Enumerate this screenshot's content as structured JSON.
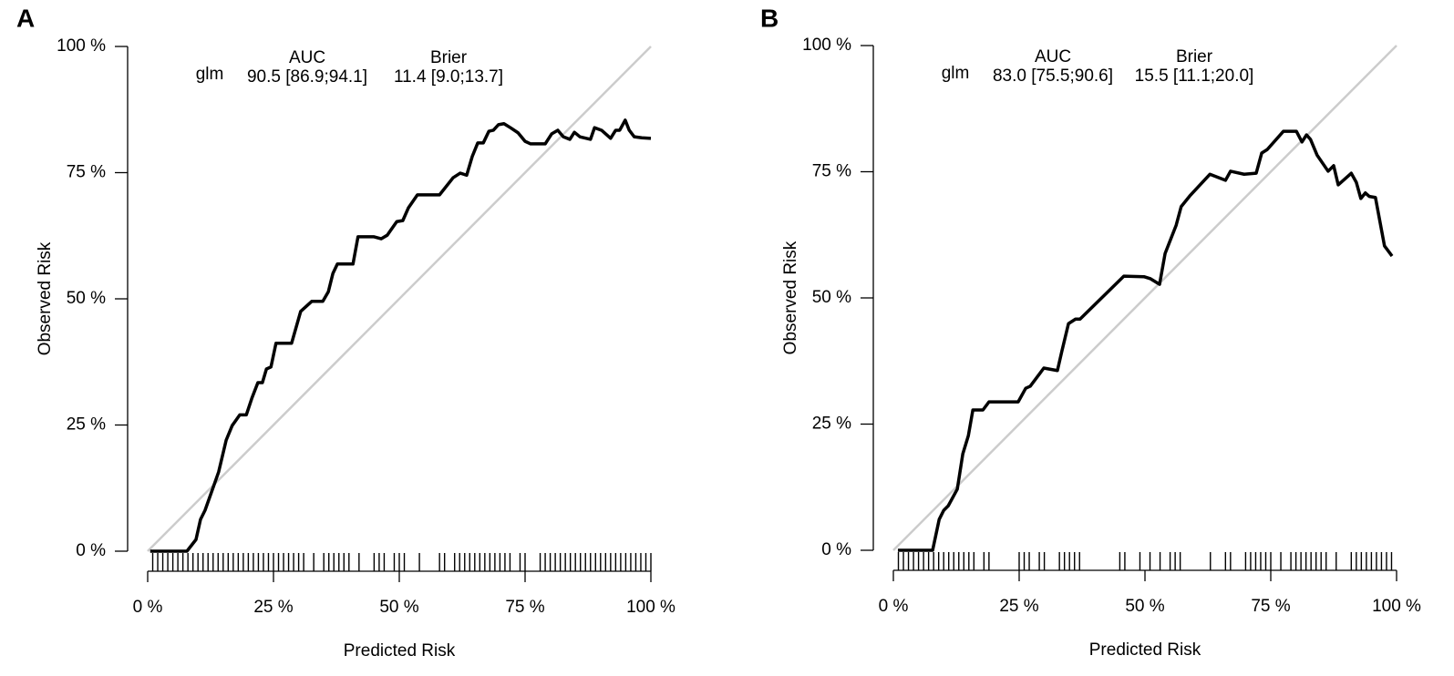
{
  "chart_data": [
    {
      "type": "line",
      "panel": "A",
      "x_label": "Predicted Risk",
      "y_label": "Observed Risk",
      "annotations": {
        "auc_header": "AUC",
        "brier_header": "Brier",
        "model": "glm",
        "auc": "90.5 [86.9;94.1]",
        "brier": "11.4 [9.0;13.7]"
      },
      "xlim": [
        0,
        100
      ],
      "ylim": [
        0,
        100
      ],
      "xticks": [
        {
          "value": 0,
          "label": "0 %"
        },
        {
          "value": 25,
          "label": "25 %"
        },
        {
          "value": 50,
          "label": "50 %"
        },
        {
          "value": 75,
          "label": "75 %"
        },
        {
          "value": 100,
          "label": "100 %"
        }
      ],
      "yticks": [
        {
          "value": 0,
          "label": "0 %"
        },
        {
          "value": 25,
          "label": "25 %"
        },
        {
          "value": 50,
          "label": "50 %"
        },
        {
          "value": 75,
          "label": "75 %"
        },
        {
          "value": 100,
          "label": "100 %"
        }
      ],
      "reference_color": "#cccccc",
      "x": [
        0.5,
        7.8,
        9.6,
        10.5,
        11.4,
        14.1,
        15.6,
        16.8,
        18.3,
        19.6,
        20.7,
        21.9,
        22.8,
        23.6,
        24.5,
        25.5,
        28.6,
        30.4,
        32.6,
        34.8,
        35.9,
        36.8,
        37.7,
        40.8,
        41.8,
        44.9,
        46.4,
        47.6,
        49.5,
        50.7,
        51.8,
        53.6,
        58,
        60.7,
        62.1,
        63.4,
        64.5,
        65.6,
        66.7,
        67.8,
        68.7,
        69.7,
        70.8,
        72.1,
        73.6,
        75,
        76.1,
        79,
        80.3,
        81.5,
        82.6,
        83.9,
        84.8,
        85.9,
        88,
        88.8,
        90.2,
        92,
        93,
        93.8,
        94.9,
        95.7,
        96.7,
        98.2,
        100
      ],
      "series": [
        {
          "color": "#000000",
          "values": [
            0,
            0,
            2.3,
            6.3,
            8.1,
            15.7,
            22,
            24.9,
            27,
            27,
            30.3,
            33.4,
            33.4,
            36.1,
            36.5,
            41.2,
            41.2,
            47.5,
            49.5,
            49.5,
            51.4,
            55,
            56.9,
            56.9,
            62.3,
            62.3,
            61.9,
            62.6,
            65.3,
            65.5,
            68,
            70.6,
            70.6,
            74,
            74.9,
            74.5,
            78.2,
            80.9,
            80.9,
            83.2,
            83.4,
            84.5,
            84.7,
            83.9,
            82.9,
            81.2,
            80.7,
            80.7,
            82.7,
            83.4,
            82.1,
            81.6,
            83,
            82.1,
            81.6,
            83.9,
            83.4,
            81.8,
            83.4,
            83.4,
            85.4,
            83.4,
            82.1,
            81.9,
            81.8
          ]
        }
      ],
      "rug": [
        1,
        2,
        3,
        4,
        5,
        6,
        7,
        8,
        9,
        10,
        11,
        12,
        13,
        14,
        15,
        16,
        17,
        18,
        19,
        20,
        21,
        22,
        23,
        24,
        25,
        26,
        27,
        28,
        29,
        30,
        31,
        33,
        35,
        36,
        37,
        38,
        39,
        40,
        42,
        45,
        46,
        47,
        49,
        50,
        51,
        54,
        58,
        59,
        61,
        62,
        63,
        64,
        65,
        66,
        67,
        68,
        69,
        70,
        71,
        72,
        74,
        75,
        78,
        79,
        80,
        81,
        82,
        83,
        84,
        85,
        86,
        87,
        88,
        89,
        90,
        91,
        92,
        93,
        94,
        95,
        96,
        97,
        98,
        99,
        100
      ]
    },
    {
      "type": "line",
      "panel": "B",
      "x_label": "Predicted Risk",
      "y_label": "Observed Risk",
      "annotations": {
        "auc_header": "AUC",
        "brier_header": "Brier",
        "model": "glm",
        "auc": "83.0 [75.5;90.6]",
        "brier": "15.5 [11.1;20.0]"
      },
      "xlim": [
        0,
        100
      ],
      "ylim": [
        0,
        100
      ],
      "xticks": [
        {
          "value": 0,
          "label": "0 %"
        },
        {
          "value": 25,
          "label": "25 %"
        },
        {
          "value": 50,
          "label": "50 %"
        },
        {
          "value": 75,
          "label": "75 %"
        },
        {
          "value": 100,
          "label": "100 %"
        }
      ],
      "yticks": [
        {
          "value": 0,
          "label": "0 %"
        },
        {
          "value": 25,
          "label": "25 %"
        },
        {
          "value": 50,
          "label": "50 %"
        },
        {
          "value": 75,
          "label": "75 %"
        },
        {
          "value": 100,
          "label": "100 %"
        }
      ],
      "reference_color": "#cccccc",
      "x": [
        0.9,
        7.8,
        9.1,
        10,
        10.9,
        12.7,
        13.8,
        14.9,
        15.8,
        17.8,
        19,
        24.8,
        26.3,
        27.2,
        29.9,
        32.6,
        33.5,
        34.8,
        36.2,
        37.1,
        45.8,
        49.8,
        51.1,
        52.9,
        54,
        56.2,
        57.2,
        58.9,
        62.9,
        66,
        67,
        69.7,
        72.1,
        73.2,
        74.3,
        77.5,
        80.1,
        81.2,
        82.1,
        82.9,
        84.2,
        86.4,
        87.5,
        88.4,
        91,
        92,
        92.9,
        93.8,
        94.6,
        95.8,
        97.6,
        99.1
      ],
      "series": [
        {
          "color": "#000000",
          "values": [
            0,
            0,
            6.1,
            7.9,
            8.8,
            12.1,
            19.1,
            22.7,
            27.8,
            27.8,
            29.4,
            29.4,
            32.1,
            32.5,
            36.1,
            35.6,
            39.5,
            44.9,
            45.8,
            45.8,
            54.3,
            54.2,
            53.8,
            52.7,
            58.8,
            64.4,
            68.1,
            70.2,
            74.5,
            73.3,
            75.1,
            74.5,
            74.7,
            78.7,
            79.4,
            83,
            83,
            80.9,
            82.3,
            81.4,
            78.3,
            75.1,
            76.2,
            72.4,
            74.7,
            72.9,
            69.7,
            70.8,
            70.1,
            69.9,
            60.3,
            58.3
          ]
        }
      ],
      "rug": [
        1,
        2,
        3,
        4,
        5,
        6,
        7,
        8,
        9,
        10,
        11,
        12,
        13,
        14,
        15,
        16,
        18,
        19,
        25,
        26,
        27,
        29,
        30,
        33,
        34,
        35,
        36,
        37,
        45,
        46,
        49,
        51,
        53,
        55,
        56,
        57,
        63,
        66,
        67,
        70,
        71,
        72,
        73,
        74,
        75,
        77,
        79,
        80,
        81,
        82,
        83,
        84,
        85,
        86,
        88,
        91,
        92,
        93,
        94,
        95,
        96,
        97,
        98,
        99
      ]
    }
  ]
}
